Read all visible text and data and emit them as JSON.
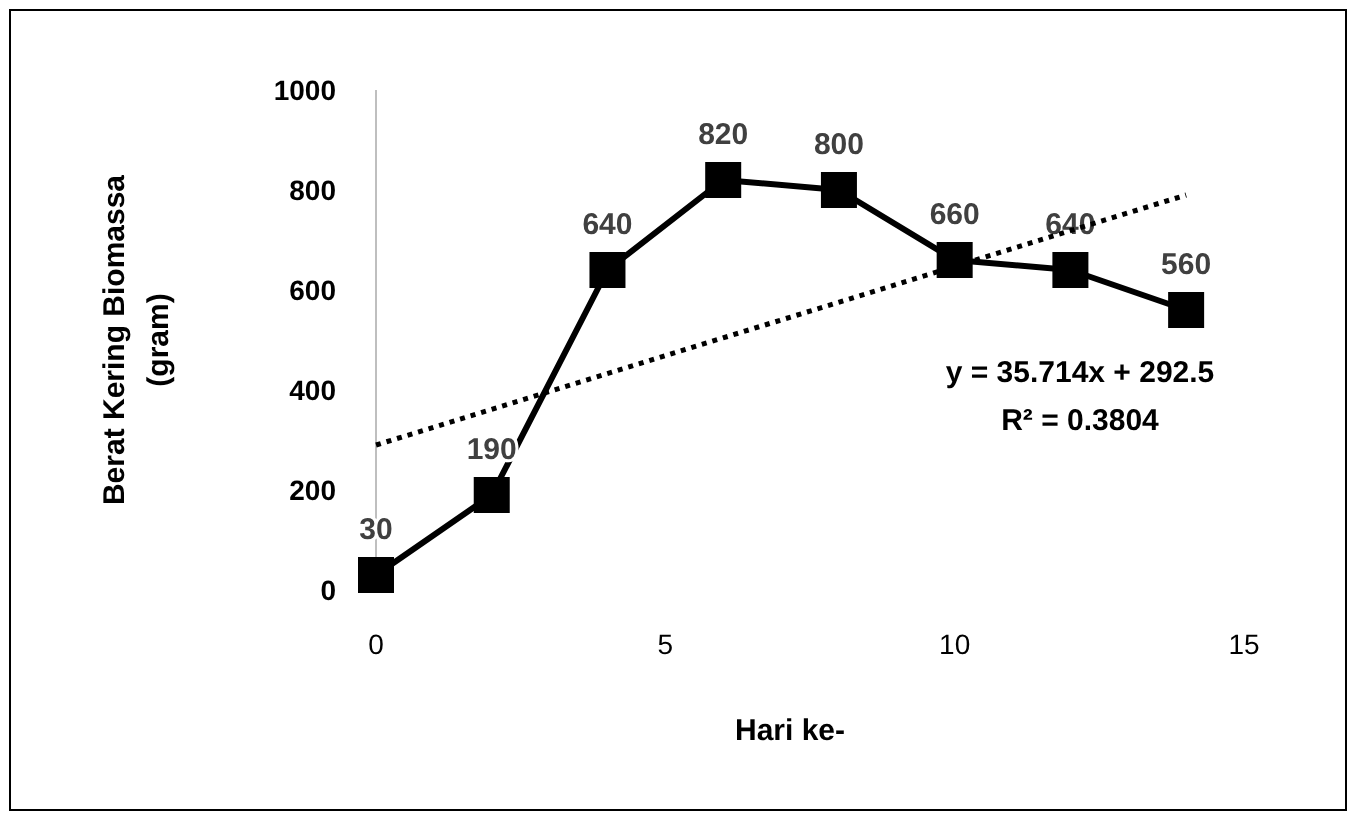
{
  "chart_data": {
    "type": "line",
    "xlabel": "Hari ke-",
    "ylabel": "Berat Kering Biomassa (gram)",
    "xlim": [
      0,
      15
    ],
    "xticks": [
      0,
      5,
      10,
      15
    ],
    "ylim": [
      0,
      1000
    ],
    "yticks": [
      0,
      200,
      400,
      600,
      800,
      1000
    ],
    "grid": false,
    "series": [
      {
        "color": "#000000",
        "marker": "square",
        "line_style": "solid",
        "x": [
          0,
          2,
          4,
          6,
          8,
          10,
          12,
          14
        ],
        "values": [
          30,
          190,
          640,
          820,
          800,
          660,
          640,
          560
        ],
        "value_labels": [
          "30",
          "190",
          "640",
          "820",
          "800",
          "660",
          "640",
          "560"
        ]
      },
      {
        "color": "#000000",
        "marker": "none",
        "line_style": "dotted",
        "x": [
          0,
          14
        ],
        "values": [
          290,
          790
        ]
      }
    ],
    "annotations": [
      "y = 35.714x + 292.5",
      "R² = 0.3804"
    ]
  }
}
